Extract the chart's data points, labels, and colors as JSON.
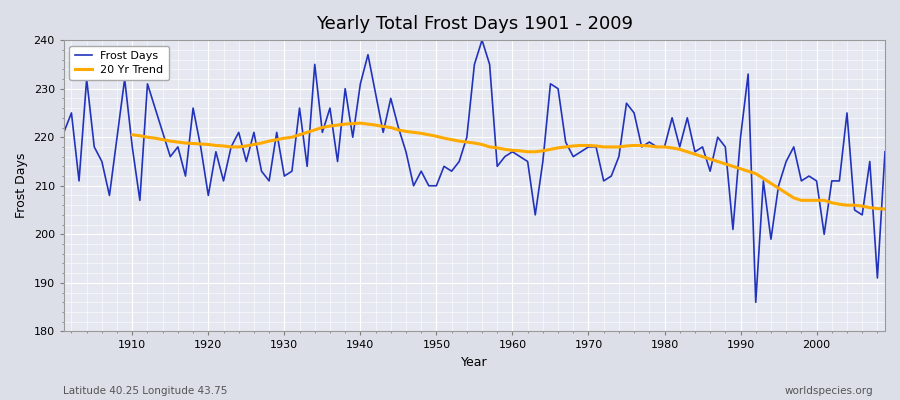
{
  "title": "Yearly Total Frost Days 1901 - 2009",
  "ylabel": "Frost Days",
  "xlabel": "Year",
  "subtitle_left": "Latitude 40.25 Longitude 43.75",
  "subtitle_right": "worldspecies.org",
  "bg_color": "#dcdfe8",
  "plot_bg_color": "#e5e8f0",
  "line_color": "#2233bb",
  "trend_color": "#ffaa00",
  "ylim": [
    180,
    240
  ],
  "xlim": [
    1901,
    2009
  ],
  "years": [
    1901,
    1902,
    1903,
    1904,
    1905,
    1906,
    1907,
    1908,
    1909,
    1910,
    1911,
    1912,
    1913,
    1914,
    1915,
    1916,
    1917,
    1918,
    1919,
    1920,
    1921,
    1922,
    1923,
    1924,
    1925,
    1926,
    1927,
    1928,
    1929,
    1930,
    1931,
    1932,
    1933,
    1934,
    1935,
    1936,
    1937,
    1938,
    1939,
    1940,
    1941,
    1942,
    1943,
    1944,
    1945,
    1946,
    1947,
    1948,
    1949,
    1950,
    1951,
    1952,
    1953,
    1954,
    1955,
    1956,
    1957,
    1958,
    1959,
    1960,
    1961,
    1962,
    1963,
    1964,
    1965,
    1966,
    1967,
    1968,
    1969,
    1970,
    1971,
    1972,
    1973,
    1974,
    1975,
    1976,
    1977,
    1978,
    1979,
    1980,
    1981,
    1982,
    1983,
    1984,
    1985,
    1986,
    1987,
    1988,
    1989,
    1990,
    1991,
    1992,
    1993,
    1994,
    1995,
    1996,
    1997,
    1998,
    1999,
    2000,
    2001,
    2002,
    2003,
    2004,
    2005,
    2006,
    2007,
    2008,
    2009
  ],
  "frost_days": [
    221,
    225,
    211,
    232,
    218,
    215,
    208,
    220,
    232,
    218,
    207,
    231,
    226,
    221,
    216,
    218,
    212,
    226,
    218,
    208,
    217,
    211,
    218,
    221,
    215,
    221,
    213,
    211,
    221,
    212,
    213,
    226,
    214,
    235,
    221,
    226,
    215,
    230,
    220,
    231,
    237,
    229,
    221,
    228,
    222,
    217,
    210,
    213,
    210,
    210,
    214,
    213,
    215,
    220,
    235,
    240,
    235,
    214,
    216,
    217,
    216,
    215,
    204,
    215,
    231,
    230,
    219,
    216,
    217,
    218,
    218,
    211,
    212,
    216,
    227,
    225,
    218,
    219,
    218,
    218,
    224,
    218,
    224,
    217,
    218,
    213,
    220,
    218,
    201,
    220,
    233,
    186,
    211,
    199,
    210,
    215,
    218,
    211,
    212,
    211,
    200,
    211,
    211,
    225,
    205,
    204,
    215,
    191,
    217
  ],
  "trend_years": [
    1910,
    1911,
    1912,
    1913,
    1914,
    1915,
    1916,
    1917,
    1918,
    1919,
    1920,
    1921,
    1922,
    1923,
    1924,
    1925,
    1926,
    1927,
    1928,
    1929,
    1930,
    1931,
    1932,
    1933,
    1934,
    1935,
    1936,
    1937,
    1938,
    1939,
    1940,
    1941,
    1942,
    1943,
    1944,
    1945,
    1946,
    1947,
    1948,
    1949,
    1950,
    1951,
    1952,
    1953,
    1954,
    1955,
    1956,
    1957,
    1958,
    1959,
    1960,
    1961,
    1962,
    1963,
    1964,
    1965,
    1966,
    1967,
    1968,
    1969,
    1970,
    1971,
    1972,
    1973,
    1974,
    1975,
    1976,
    1977,
    1978,
    1979,
    1980,
    1981,
    1982,
    1983,
    1984,
    1985,
    1986,
    1987,
    1988,
    1989,
    1990,
    1991,
    1992,
    1993,
    1994,
    1995,
    1996,
    1997,
    1998,
    1999,
    2000,
    2001,
    2002,
    2003,
    2004,
    2005,
    2006,
    2007,
    2008,
    2009
  ],
  "trend": [
    220.5,
    220.3,
    220.0,
    219.8,
    219.5,
    219.2,
    219.0,
    218.8,
    218.7,
    218.6,
    218.5,
    218.3,
    218.2,
    218.0,
    218.0,
    218.2,
    218.5,
    218.8,
    219.2,
    219.5,
    219.8,
    220.0,
    220.5,
    221.0,
    221.5,
    222.0,
    222.3,
    222.5,
    222.7,
    222.8,
    222.9,
    222.7,
    222.5,
    222.2,
    222.0,
    221.5,
    221.2,
    221.0,
    220.8,
    220.5,
    220.2,
    219.8,
    219.5,
    219.2,
    219.0,
    218.8,
    218.5,
    218.0,
    217.8,
    217.5,
    217.3,
    217.2,
    217.0,
    217.0,
    217.2,
    217.5,
    217.8,
    218.0,
    218.2,
    218.3,
    218.3,
    218.2,
    218.0,
    218.0,
    218.0,
    218.2,
    218.3,
    218.3,
    218.2,
    218.0,
    218.0,
    217.8,
    217.5,
    217.0,
    216.5,
    216.0,
    215.5,
    215.0,
    214.5,
    214.0,
    213.5,
    213.0,
    212.5,
    211.5,
    210.5,
    209.5,
    208.5,
    207.5,
    207.0,
    207.0,
    207.0,
    207.0,
    206.5,
    206.2,
    206.0,
    206.0,
    205.8,
    205.5,
    205.3,
    205.2
  ]
}
